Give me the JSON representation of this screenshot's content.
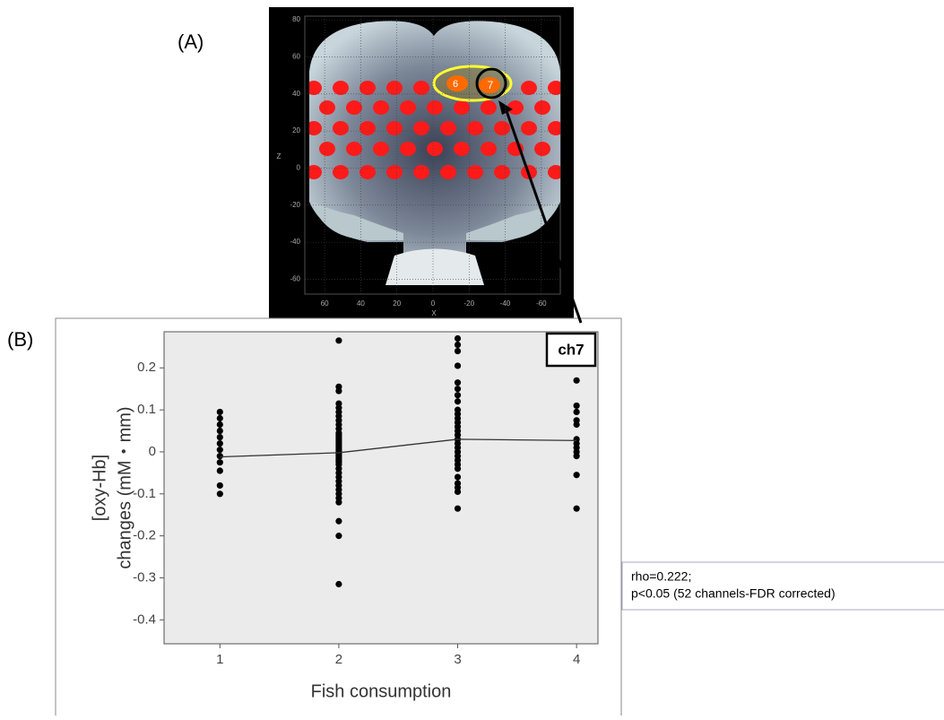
{
  "panels": {
    "a_label": "(A)",
    "b_label": "(B)"
  },
  "brain": {
    "xlabel": "X",
    "zlabel": "Z",
    "xlim": [
      71,
      -70.5
    ],
    "zlim": [
      -68,
      82
    ],
    "xticks": [
      60,
      40,
      20,
      0,
      -20,
      -40,
      -60
    ],
    "zticks": [
      80,
      60,
      40,
      20,
      0,
      -20,
      -40,
      -60
    ],
    "channel_labels": [
      "6",
      "7"
    ]
  },
  "chart_data": {
    "type": "scatter",
    "title": "ch7",
    "xlabel": "Fish consumption",
    "ylabel": [
      "[oxy-Hb]",
      "changes (mM・mm)"
    ],
    "xlim": [
      0.53,
      4.18
    ],
    "ylim": [
      -0.457,
      0.286
    ],
    "xticks": [
      1,
      2,
      3,
      4
    ],
    "yticks": [
      0.2,
      0.1,
      0,
      -0.1,
      -0.2,
      -0.3,
      -0.4
    ],
    "series": [
      {
        "type": "scatter",
        "color": "#000000",
        "x": [
          1,
          1,
          1,
          1,
          1,
          1,
          1,
          1,
          1,
          1,
          1,
          1,
          2,
          2,
          2,
          2,
          2,
          2,
          2,
          2,
          2,
          2,
          2,
          2,
          2,
          2,
          2,
          2,
          2,
          2,
          2,
          2,
          2,
          2,
          2,
          2,
          2,
          2,
          2,
          2,
          2,
          2,
          2,
          2,
          2,
          2,
          2,
          2,
          2,
          2,
          3,
          3,
          3,
          3,
          3,
          3,
          3,
          3,
          3,
          3,
          3,
          3,
          3,
          3,
          3,
          3,
          3,
          3,
          3,
          3,
          3,
          3,
          3,
          3,
          3,
          3,
          3,
          3,
          4,
          4,
          4,
          4,
          4,
          4,
          4,
          4,
          4,
          4,
          4,
          4
        ],
        "values": [
          0.095,
          0.08,
          0.065,
          0.05,
          0.035,
          0.02,
          0.005,
          -0.01,
          -0.025,
          -0.045,
          -0.08,
          -0.1,
          0.265,
          0.155,
          0.145,
          0.115,
          0.105,
          0.095,
          0.085,
          0.075,
          0.065,
          0.055,
          0.045,
          0.04,
          0.035,
          0.03,
          0.025,
          0.02,
          0.015,
          0.01,
          0.005,
          0,
          -0.005,
          -0.01,
          -0.015,
          -0.02,
          -0.025,
          -0.03,
          -0.04,
          -0.05,
          -0.06,
          -0.07,
          -0.08,
          -0.09,
          -0.1,
          -0.11,
          -0.12,
          -0.165,
          -0.2,
          -0.315,
          0.27,
          0.255,
          0.24,
          0.205,
          0.165,
          0.15,
          0.135,
          0.12,
          0.1,
          0.09,
          0.08,
          0.07,
          0.06,
          0.05,
          0.04,
          0.03,
          0.02,
          0.01,
          0,
          -0.01,
          -0.02,
          -0.03,
          -0.04,
          -0.06,
          -0.075,
          -0.085,
          -0.095,
          -0.135,
          0.17,
          0.11,
          0.095,
          0.075,
          0.065,
          0.03,
          0.02,
          0.01,
          0,
          -0.01,
          -0.055,
          -0.135
        ]
      },
      {
        "type": "line",
        "color": "#333333",
        "x": [
          1,
          2,
          3,
          4
        ],
        "values": [
          -0.012,
          -0.002,
          0.03,
          0.027
        ]
      }
    ]
  },
  "annotation": {
    "lines": [
      "rho=0.222;",
      "p<0.05 (52 channels-FDR corrected)"
    ]
  }
}
